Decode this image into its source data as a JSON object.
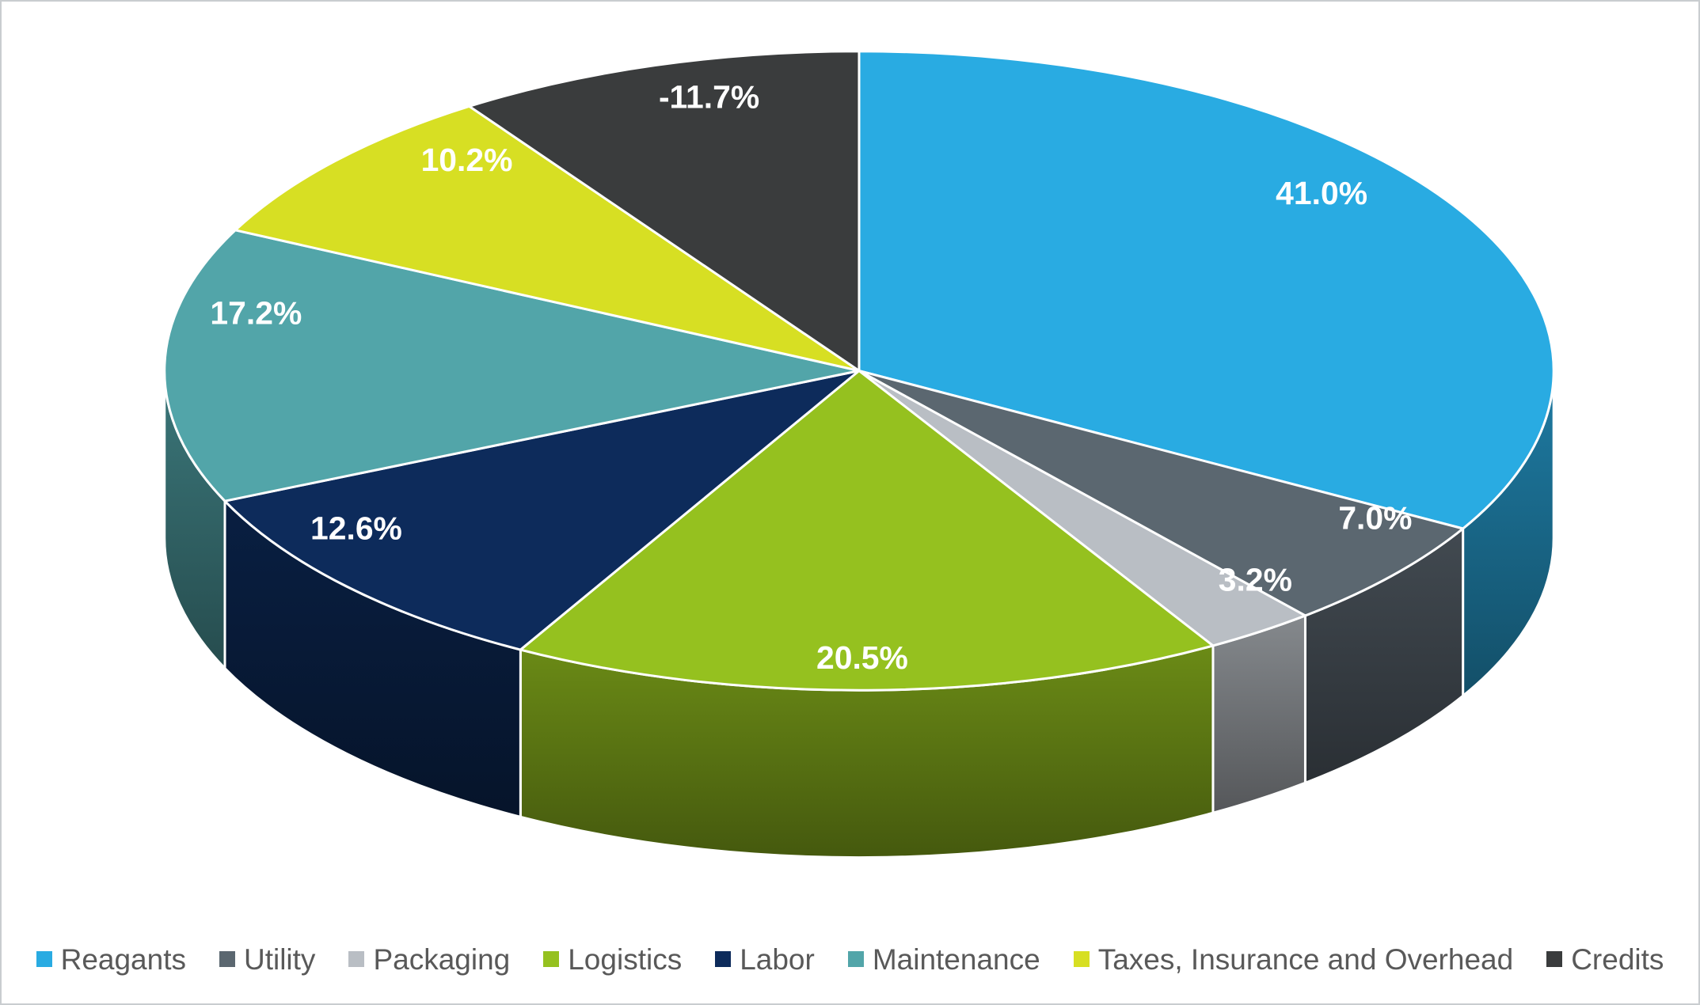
{
  "chart_data": {
    "type": "pie",
    "style": "3d-pie",
    "title": "",
    "legend_position": "bottom",
    "grid": false,
    "categories": [
      "Reagants",
      "Utility",
      "Packaging",
      "Logistics",
      "Labor",
      "Maintenance",
      "Taxes, Insurance and Overhead",
      "Credits"
    ],
    "values": [
      41.0,
      7.0,
      3.2,
      20.5,
      12.6,
      17.2,
      10.2,
      -11.7
    ],
    "labels": [
      "41.0%",
      "7.0%",
      "3.2%",
      "20.5%",
      "12.6%",
      "17.2%",
      "10.2%",
      "-11.7%"
    ],
    "colors": [
      "#29ABE2",
      "#5B6770",
      "#B9BEC4",
      "#95C11F",
      "#0D2B5B",
      "#52A5A9",
      "#D7DF23",
      "#3A3C3D"
    ],
    "slice_border_color": "#FFFFFF",
    "label_color": "#FFFFFF",
    "legend_text_color": "#595959",
    "background": "#FFFFFF",
    "border_color": "#C9CDD0"
  }
}
